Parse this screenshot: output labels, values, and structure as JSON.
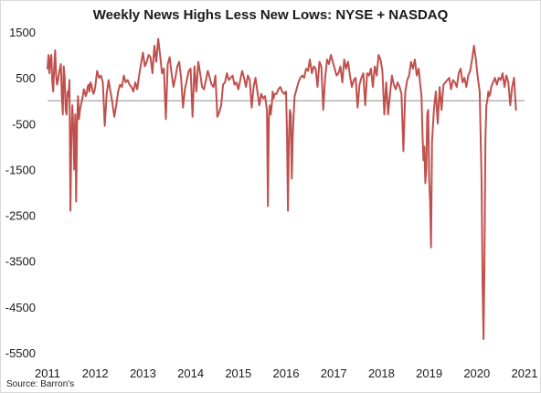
{
  "chart_data": {
    "type": "line",
    "title": "Weekly News Highs Less New Lows: NYSE + NASDAQ",
    "source": "Source: Barron's",
    "xlabel": "",
    "ylabel": "",
    "xlim": [
      2011,
      2021
    ],
    "ylim": [
      -5500,
      1500
    ],
    "x_ticks": [
      2011,
      2012,
      2013,
      2014,
      2015,
      2016,
      2017,
      2018,
      2019,
      2020,
      2021
    ],
    "y_ticks": [
      1500,
      500,
      -500,
      -1500,
      -2500,
      -3500,
      -4500,
      -5500
    ],
    "grid": false,
    "legend": "none",
    "line_color": "#c0504d",
    "zero_line_color": "#a6a6a6",
    "series": [
      {
        "x": [
          2011.0,
          2011.02,
          2011.04,
          2011.06,
          2011.08,
          2011.1,
          2011.12,
          2011.14,
          2011.16,
          2011.18,
          2011.2,
          2011.22,
          2011.24,
          2011.26,
          2011.28,
          2011.3,
          2011.32,
          2011.34,
          2011.36,
          2011.38,
          2011.4,
          2011.42,
          2011.44,
          2011.46,
          2011.48,
          2011.5,
          2011.52,
          2011.54,
          2011.56,
          2011.58,
          2011.6,
          2011.62,
          2011.64,
          2011.66,
          2011.68,
          2011.7,
          2011.72,
          2011.74,
          2011.76,
          2011.78,
          2011.8,
          2011.82,
          2011.84,
          2011.86,
          2011.88,
          2011.9,
          2011.92,
          2011.94,
          2011.96,
          2011.98,
          2012.0,
          2012.04,
          2012.08,
          2012.12,
          2012.16,
          2012.2,
          2012.24,
          2012.28,
          2012.32,
          2012.36,
          2012.4,
          2012.44,
          2012.48,
          2012.52,
          2012.56,
          2012.6,
          2012.64,
          2012.68,
          2012.72,
          2012.76,
          2012.8,
          2012.84,
          2012.88,
          2012.92,
          2012.96,
          2013.0,
          2013.04,
          2013.08,
          2013.12,
          2013.16,
          2013.2,
          2013.24,
          2013.28,
          2013.32,
          2013.36,
          2013.4,
          2013.44,
          2013.48,
          2013.52,
          2013.56,
          2013.6,
          2013.64,
          2013.68,
          2013.72,
          2013.76,
          2013.8,
          2013.84,
          2013.88,
          2013.92,
          2013.96,
          2014.0,
          2014.04,
          2014.08,
          2014.12,
          2014.16,
          2014.2,
          2014.24,
          2014.28,
          2014.32,
          2014.36,
          2014.4,
          2014.44,
          2014.48,
          2014.52,
          2014.56,
          2014.6,
          2014.64,
          2014.68,
          2014.72,
          2014.76,
          2014.8,
          2014.84,
          2014.88,
          2014.92,
          2014.96,
          2015.0,
          2015.04,
          2015.08,
          2015.12,
          2015.16,
          2015.2,
          2015.24,
          2015.28,
          2015.32,
          2015.36,
          2015.4,
          2015.44,
          2015.48,
          2015.52,
          2015.56,
          2015.6,
          2015.62,
          2015.64,
          2015.66,
          2015.68,
          2015.7,
          2015.72,
          2015.74,
          2015.76,
          2015.8,
          2015.84,
          2015.88,
          2015.92,
          2015.96,
          2016.0,
          2016.02,
          2016.04,
          2016.06,
          2016.08,
          2016.1,
          2016.12,
          2016.14,
          2016.16,
          2016.18,
          2016.22,
          2016.26,
          2016.3,
          2016.34,
          2016.38,
          2016.42,
          2016.46,
          2016.5,
          2016.54,
          2016.58,
          2016.62,
          2016.66,
          2016.7,
          2016.74,
          2016.78,
          2016.82,
          2016.86,
          2016.9,
          2016.94,
          2016.98,
          2017.02,
          2017.06,
          2017.1,
          2017.14,
          2017.18,
          2017.22,
          2017.26,
          2017.3,
          2017.34,
          2017.38,
          2017.42,
          2017.46,
          2017.5,
          2017.54,
          2017.58,
          2017.62,
          2017.66,
          2017.7,
          2017.74,
          2017.78,
          2017.82,
          2017.86,
          2017.9,
          2017.94,
          2017.98,
          2018.02,
          2018.06,
          2018.1,
          2018.14,
          2018.18,
          2018.22,
          2018.26,
          2018.3,
          2018.34,
          2018.38,
          2018.42,
          2018.46,
          2018.5,
          2018.54,
          2018.58,
          2018.62,
          2018.66,
          2018.7,
          2018.74,
          2018.78,
          2018.8,
          2018.82,
          2018.84,
          2018.86,
          2018.88,
          2018.9,
          2018.92,
          2018.94,
          2018.96,
          2018.98,
          2019.0,
          2019.02,
          2019.04,
          2019.06,
          2019.1,
          2019.14,
          2019.18,
          2019.22,
          2019.26,
          2019.3,
          2019.34,
          2019.38,
          2019.42,
          2019.46,
          2019.5,
          2019.54,
          2019.58,
          2019.62,
          2019.66,
          2019.7,
          2019.74,
          2019.78,
          2019.82,
          2019.86,
          2019.9,
          2019.94,
          2019.98,
          2020.02,
          2020.06,
          2020.1,
          2020.12,
          2020.14,
          2020.16,
          2020.18,
          2020.2,
          2020.22,
          2020.24,
          2020.26,
          2020.28,
          2020.3,
          2020.34,
          2020.38,
          2020.42,
          2020.46,
          2020.5,
          2020.54,
          2020.58,
          2020.62,
          2020.66,
          2020.7,
          2020.74,
          2020.78,
          2020.82
        ],
        "y": [
          700,
          1000,
          600,
          900,
          1000,
          400,
          200,
          750,
          1100,
          550,
          350,
          450,
          600,
          700,
          800,
          100,
          -300,
          750,
          500,
          -200,
          -300,
          200,
          100,
          450,
          -2400,
          -800,
          -100,
          -600,
          -1500,
          -300,
          -2200,
          -500,
          100,
          -400,
          -200,
          -100,
          0,
          100,
          250,
          200,
          100,
          150,
          300,
          350,
          200,
          400,
          350,
          250,
          150,
          200,
          300,
          650,
          500,
          550,
          400,
          -550,
          150,
          450,
          200,
          -50,
          -350,
          -100,
          200,
          350,
          300,
          550,
          400,
          450,
          350,
          300,
          200,
          400,
          250,
          550,
          800,
          1050,
          750,
          850,
          1000,
          950,
          600,
          1200,
          850,
          1350,
          1000,
          600,
          700,
          -400,
          800,
          950,
          600,
          300,
          500,
          750,
          850,
          500,
          -150,
          250,
          450,
          650,
          700,
          -350,
          750,
          200,
          850,
          600,
          300,
          250,
          450,
          650,
          500,
          350,
          300,
          550,
          -350,
          -250,
          -100,
          350,
          400,
          600,
          450,
          500,
          550,
          350,
          400,
          250,
          450,
          650,
          500,
          300,
          550,
          450,
          -150,
          300,
          500,
          200,
          -100,
          150,
          50,
          100,
          -200,
          -2300,
          -400,
          -100,
          -300,
          -100,
          200,
          50,
          150,
          150,
          250,
          300,
          200,
          150,
          200,
          -700,
          -2400,
          -900,
          -200,
          -300,
          -1700,
          -800,
          -300,
          100,
          250,
          400,
          500,
          550,
          500,
          700,
          650,
          900,
          600,
          750,
          700,
          300,
          850,
          750,
          -200,
          500,
          900,
          800,
          1000,
          850,
          700,
          550,
          600,
          750,
          400,
          900,
          700,
          850,
          550,
          300,
          450,
          500,
          -150,
          350,
          500,
          600,
          -100,
          600,
          550,
          700,
          300,
          750,
          550,
          1000,
          900,
          650,
          -300,
          400,
          -300,
          150,
          550,
          350,
          250,
          400,
          300,
          150,
          -1100,
          200,
          450,
          550,
          850,
          700,
          900,
          550,
          700,
          500,
          300,
          100,
          -700,
          -1300,
          -1000,
          -1800,
          -1500,
          -300,
          -200,
          -1700,
          -2200,
          -3200,
          -900,
          -200,
          200,
          -500,
          300,
          -200,
          350,
          400,
          450,
          500,
          250,
          450,
          400,
          300,
          600,
          700,
          400,
          500,
          300,
          550,
          650,
          900,
          1200,
          900,
          500,
          200,
          -1800,
          -4000,
          -5200,
          -3500,
          -800,
          -100,
          0,
          200,
          100,
          150,
          300,
          400,
          500,
          350,
          500,
          450,
          600,
          300,
          550,
          400,
          -100,
          300,
          500,
          -200
        ]
      }
    ]
  }
}
